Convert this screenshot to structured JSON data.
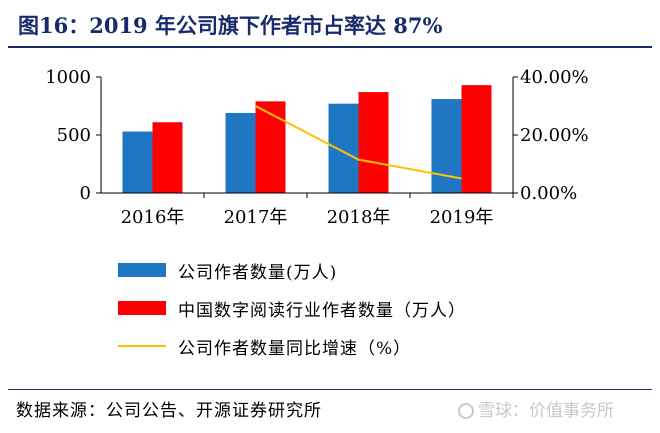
{
  "title": "图16：2019 年公司旗下作者市占率达 87%",
  "source": "数据来源：公司公告、开源证券研究所",
  "watermark": "雪球：价值事务所",
  "chart_data": {
    "type": "bar",
    "categories": [
      "2016年",
      "2017年",
      "2018年",
      "2019年"
    ],
    "series": [
      {
        "name": "公司作者数量(万人)",
        "type": "bar",
        "axis": "left",
        "color": "#1f77c4",
        "values": [
          530,
          690,
          770,
          810
        ]
      },
      {
        "name": "中国数字阅读行业作者数量（万人）",
        "type": "bar",
        "axis": "left",
        "color": "#ff0000",
        "values": [
          610,
          790,
          870,
          930
        ]
      },
      {
        "name": "公司作者数量同比增速（%）",
        "type": "line",
        "axis": "right",
        "color": "#ffc000",
        "values": [
          null,
          0.3,
          0.115,
          0.05
        ]
      }
    ],
    "y_left": {
      "min": 0,
      "max": 1000,
      "ticks": [
        0,
        500,
        1000
      ],
      "tick_labels": [
        "0",
        "500",
        "1000"
      ]
    },
    "y_right": {
      "min": 0,
      "max": 0.4,
      "ticks": [
        0,
        0.2,
        0.4
      ],
      "tick_labels": [
        "0.00%",
        "20.00%",
        "40.00%"
      ]
    },
    "grid": false,
    "legend_position": "bottom"
  }
}
